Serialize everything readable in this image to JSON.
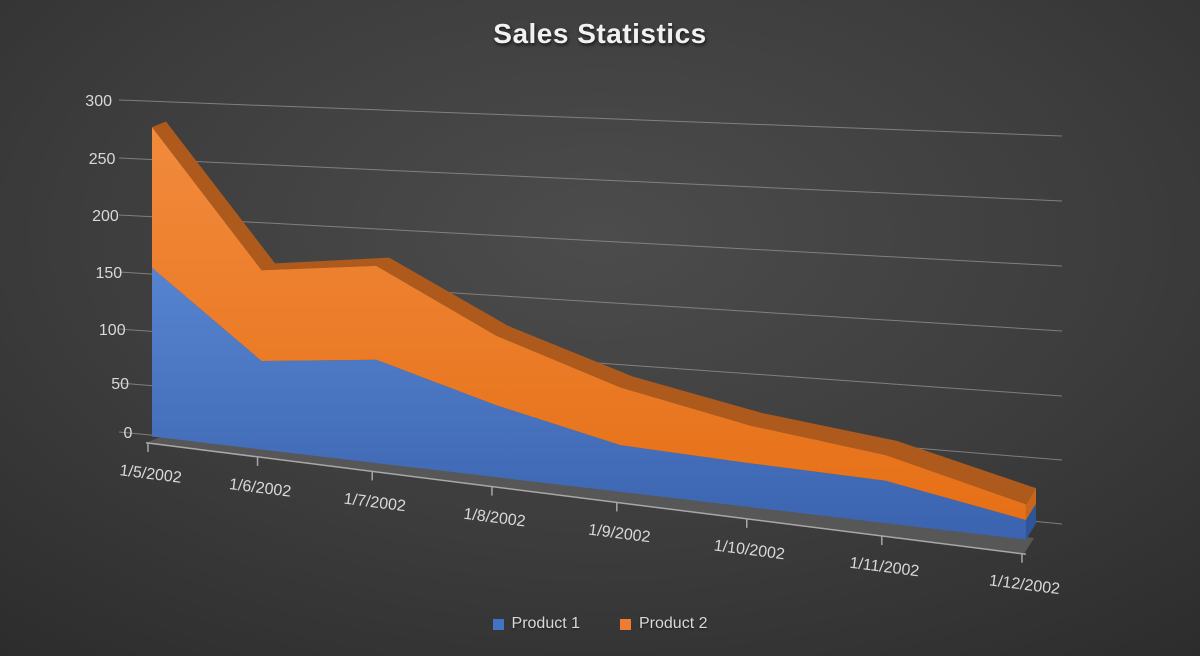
{
  "title": "Sales Statistics",
  "chart_data": {
    "type": "area",
    "subtype": "stacked-3d",
    "title": "Sales Statistics",
    "categories": [
      "1/5/2002",
      "1/6/2002",
      "1/7/2002",
      "1/8/2002",
      "1/9/2002",
      "1/10/2002",
      "1/11/2002",
      "1/12/2002"
    ],
    "series": [
      {
        "name": "Product 1",
        "color": "#4472C4",
        "values": [
          150,
          77,
          88,
          60,
          38,
          35,
          33,
          15
        ]
      },
      {
        "name": "Product 2",
        "color": "#ED7D31",
        "values": [
          125,
          79,
          80,
          58,
          47,
          30,
          20,
          12
        ]
      }
    ],
    "yticks": [
      0,
      50,
      100,
      150,
      200,
      250,
      300
    ],
    "ylim": [
      0,
      300
    ],
    "grid": true,
    "legend_position": "bottom"
  },
  "colors": {
    "series1": "#4472C4",
    "series2": "#ED7D31",
    "axis_text": "#D9D9D9",
    "title_text": "#F1F1F1",
    "gridline": "#8F8F8F"
  }
}
